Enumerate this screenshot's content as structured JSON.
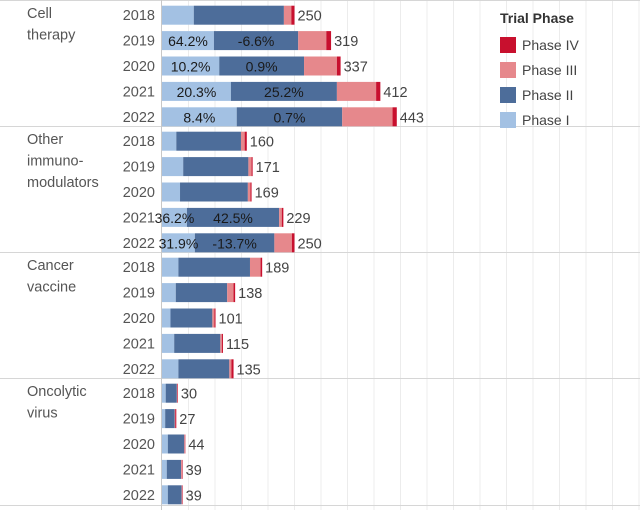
{
  "chart_data": {
    "type": "bar",
    "orientation": "horizontal",
    "stacked": true,
    "legend_title": "Trial Phase",
    "phases": [
      "Phase I",
      "Phase II",
      "Phase III",
      "Phase IV"
    ],
    "colors": {
      "Phase I": "#a3c1e3",
      "Phase II": "#4d6d9a",
      "Phase III": "#e6888c",
      "Phase IV": "#c8102e"
    },
    "x_max": 450,
    "groups": [
      {
        "label_lines": [
          "Cell",
          "therapy"
        ],
        "rows": [
          {
            "year": "2018",
            "total": 250,
            "values": [
              60,
              170,
              14,
              6
            ],
            "labels": []
          },
          {
            "year": "2019",
            "total": 319,
            "values": [
              98,
              159,
              53,
              9
            ],
            "labels": [
              "64.2%",
              "-6.6%"
            ]
          },
          {
            "year": "2020",
            "total": 337,
            "values": [
              108,
              160,
              62,
              7
            ],
            "labels": [
              "10.2%",
              "0.9%"
            ]
          },
          {
            "year": "2021",
            "total": 412,
            "values": [
              130,
              200,
              74,
              8
            ],
            "labels": [
              "20.3%",
              "25.2%"
            ]
          },
          {
            "year": "2022",
            "total": 443,
            "values": [
              141,
              199,
              95,
              8
            ],
            "labels": [
              "8.4%",
              "0.7%"
            ]
          }
        ]
      },
      {
        "label_lines": [
          "Other",
          "immuno-",
          "modulators"
        ],
        "rows": [
          {
            "year": "2018",
            "total": 160,
            "values": [
              27,
              122,
              7,
              4
            ],
            "labels": []
          },
          {
            "year": "2019",
            "total": 171,
            "values": [
              40,
              123,
              6,
              2
            ],
            "labels": []
          },
          {
            "year": "2020",
            "total": 169,
            "values": [
              34,
              128,
              5,
              2
            ],
            "labels": []
          },
          {
            "year": "2021",
            "total": 229,
            "values": [
              47,
              174,
              5,
              3
            ],
            "labels": [
              "36.2%",
              "42.5%"
            ]
          },
          {
            "year": "2022",
            "total": 250,
            "values": [
              62,
              150,
              33,
              5
            ],
            "labels": [
              "31.9%",
              "-13.7%"
            ]
          }
        ]
      },
      {
        "label_lines": [
          "Cancer",
          "vaccine"
        ],
        "rows": [
          {
            "year": "2018",
            "total": 189,
            "values": [
              31,
              135,
              20,
              3
            ],
            "labels": []
          },
          {
            "year": "2019",
            "total": 138,
            "values": [
              26,
              97,
              12,
              3
            ],
            "labels": []
          },
          {
            "year": "2020",
            "total": 101,
            "values": [
              16,
              79,
              4,
              2
            ],
            "labels": []
          },
          {
            "year": "2021",
            "total": 115,
            "values": [
              23,
              87,
              3,
              2
            ],
            "labels": []
          },
          {
            "year": "2022",
            "total": 135,
            "values": [
              31,
              96,
              4,
              4
            ],
            "labels": []
          }
        ]
      },
      {
        "label_lines": [
          "Oncolytic",
          "virus"
        ],
        "rows": [
          {
            "year": "2018",
            "total": 30,
            "values": [
              7,
              21,
              1,
              1
            ],
            "labels": []
          },
          {
            "year": "2019",
            "total": 27,
            "values": [
              6,
              18,
              1,
              2
            ],
            "labels": []
          },
          {
            "year": "2020",
            "total": 44,
            "values": [
              11,
              31,
              1,
              1
            ],
            "labels": []
          },
          {
            "year": "2021",
            "total": 39,
            "values": [
              9,
              27,
              2,
              1
            ],
            "labels": []
          },
          {
            "year": "2022",
            "total": 39,
            "values": [
              11,
              26,
              1,
              1
            ],
            "labels": []
          }
        ]
      }
    ]
  }
}
